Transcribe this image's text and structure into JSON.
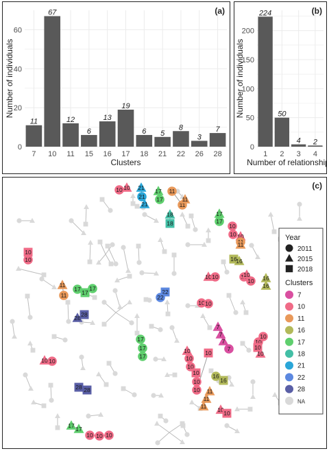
{
  "colors": {
    "bar": "#595959",
    "grid": "#ebebeb",
    "link": "#bdbdbd",
    "na": "#d9d9d9",
    "clusters": {
      "7": "#d94fa0",
      "10": "#f06b87",
      "11": "#e9995a",
      "16": "#b2b95a",
      "17": "#5fcf6e",
      "18": "#43bfa6",
      "21": "#2aa6d8",
      "22": "#5c88e0",
      "28": "#5a5fa6"
    }
  },
  "chart_data": [
    {
      "panel": "(a)",
      "type": "bar",
      "categories": [
        "7",
        "10",
        "11",
        "15",
        "16",
        "17",
        "18",
        "21",
        "22",
        "26",
        "28"
      ],
      "values": [
        11,
        67,
        12,
        6,
        13,
        19,
        6,
        5,
        8,
        3,
        7
      ],
      "xlabel": "Clusters",
      "ylabel": "Number of individuals",
      "ylim": [
        0,
        70
      ],
      "yticks": [
        0,
        20,
        40,
        60
      ],
      "grid": true
    },
    {
      "panel": "(b)",
      "type": "bar",
      "categories": [
        "1",
        "2",
        "3",
        "4"
      ],
      "values": [
        224,
        50,
        4,
        2
      ],
      "xlabel": "Number of relationships",
      "ylabel": "Number of individuals",
      "ylim": [
        0,
        235
      ],
      "yticks": [
        0,
        50,
        100,
        150,
        200
      ],
      "grid": true
    },
    {
      "panel": "(c)",
      "type": "network",
      "legend": {
        "year_title": "Year",
        "years": [
          {
            "label": "2011",
            "shape": "circle"
          },
          {
            "label": "2015",
            "shape": "triangle"
          },
          {
            "label": "2018",
            "shape": "square"
          }
        ],
        "cluster_title": "Clusters",
        "clusters": [
          "7",
          "10",
          "11",
          "16",
          "17",
          "18",
          "21",
          "22",
          "28",
          "NA"
        ]
      }
    }
  ]
}
